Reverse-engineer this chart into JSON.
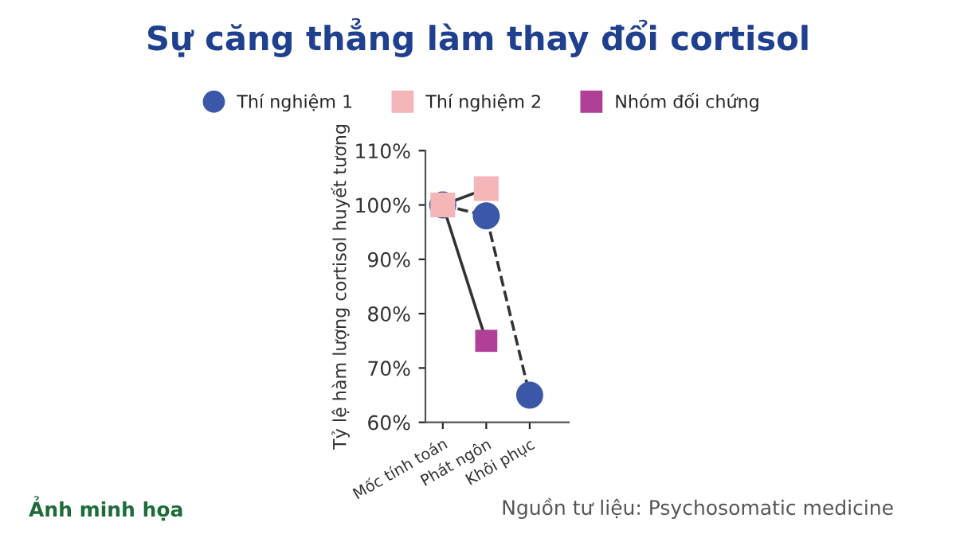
{
  "chart_data": {
    "type": "line",
    "title": "Sự căng thẳng làm thay đổi cortisol",
    "ylabel": "Tỷ lệ hàm lượng cortisol huyết tương",
    "categories": [
      "Mốc tính toán",
      "Phát ngôn",
      "Khôi phục"
    ],
    "series": [
      {
        "name": "Thí nghiệm 1",
        "color": "#3b58a8",
        "values": [
          100,
          98,
          65
        ],
        "marker": "circle",
        "line_style": "dashed"
      },
      {
        "name": "Thí nghiệm 2",
        "color": "#f4b6b8",
        "values": [
          100,
          103,
          null
        ],
        "marker": "square",
        "line_style": "solid"
      },
      {
        "name": "Nhóm đối chứng",
        "color": "#b03f97",
        "values": [
          100,
          75,
          null
        ],
        "marker": "square",
        "line_style": "solid"
      }
    ],
    "ylim": [
      60,
      110
    ],
    "yticks": [
      {
        "value": 60,
        "label": "60%"
      },
      {
        "value": 70,
        "label": "70%"
      },
      {
        "value": 80,
        "label": "80%"
      },
      {
        "value": 90,
        "label": "90%"
      },
      {
        "value": 100,
        "label": "100%"
      },
      {
        "value": 110,
        "label": "110%"
      }
    ],
    "grid": false,
    "legend": "top",
    "annotations": [
      "Ảnh minh họa",
      "Nguồn tư liệu: Psychosomatic medicine"
    ]
  }
}
